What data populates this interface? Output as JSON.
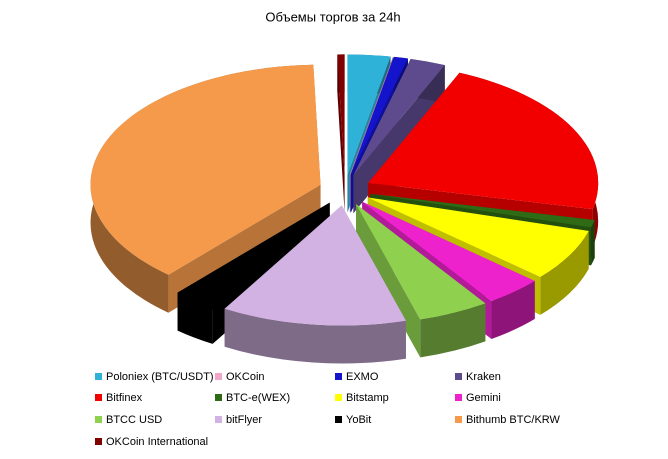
{
  "chart_data": {
    "type": "pie3d",
    "title": "Объемы торгов за 24h",
    "series": [
      {
        "name": "Poloniex (BTC/USDT)",
        "color": "#2eb2d8",
        "values": [
          3
        ]
      },
      {
        "name": "OKCoin",
        "color": "#f2a6c9",
        "values": [
          0
        ]
      },
      {
        "name": "EXMO",
        "color": "#1414cc",
        "values": [
          1
        ]
      },
      {
        "name": "Kraken",
        "color": "#5e4b8e",
        "values": [
          2.5
        ]
      },
      {
        "name": "Bitfinex",
        "color": "#f20000",
        "values": [
          22
        ]
      },
      {
        "name": "BTC-e(WEX)",
        "color": "#2f6a14",
        "values": [
          1
        ]
      },
      {
        "name": "Bitstamp",
        "color": "#ffff00",
        "values": [
          7
        ]
      },
      {
        "name": "Gemini",
        "color": "#ee22cc",
        "values": [
          4
        ]
      },
      {
        "name": "BTCC USD",
        "color": "#8fd04f",
        "values": [
          5
        ]
      },
      {
        "name": "bitFlyer",
        "color": "#d2b2e2",
        "values": [
          13
        ]
      },
      {
        "name": "YoBit",
        "color": "#000000",
        "values": [
          3
        ]
      },
      {
        "name": "Bithumb BTC/KRW",
        "color": "#f59a4a",
        "values": [
          38
        ]
      },
      {
        "name": "OKCoin  International",
        "color": "#800000",
        "values": [
          0.5
        ]
      }
    ],
    "legend": "bottom"
  }
}
